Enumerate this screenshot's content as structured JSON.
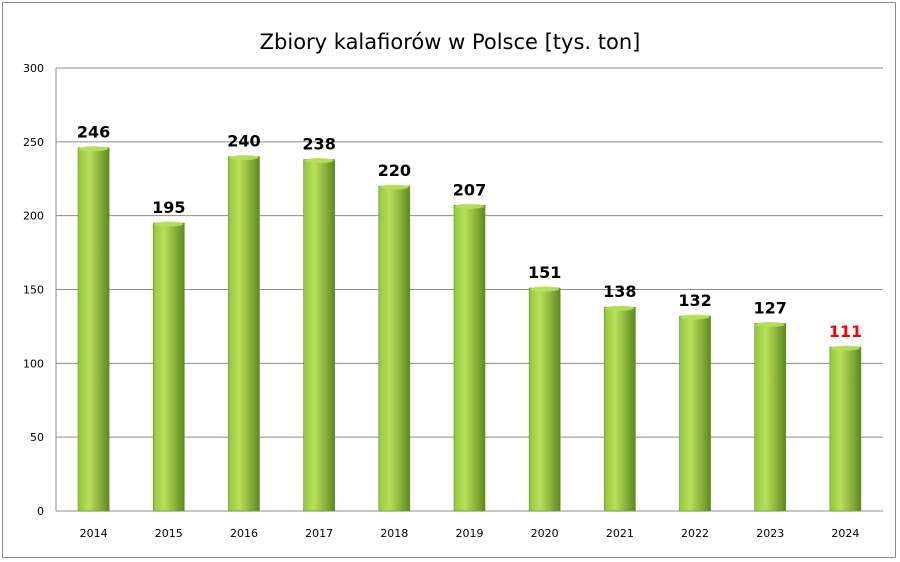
{
  "chart_data": {
    "type": "bar",
    "title": "Zbiory kalafiorów w Polsce [tys. ton]",
    "xlabel": "",
    "ylabel": "",
    "categories": [
      "2014",
      "2015",
      "2016",
      "2017",
      "2018",
      "2019",
      "2020",
      "2021",
      "2022",
      "2023",
      "2024"
    ],
    "values": [
      246,
      195,
      240,
      238,
      220,
      207,
      151,
      138,
      132,
      127,
      111
    ],
    "ylim": [
      0,
      300
    ],
    "yticks": [
      0,
      50,
      100,
      150,
      200,
      250,
      300
    ],
    "grid": true,
    "legend": "none",
    "colors": {
      "bar_light": "#b8e05a",
      "bar_mid": "#92c83e",
      "bar_dark": "#5e8a1e",
      "grid": "#8c8c8c",
      "label": "#000000",
      "highlight_label": "#ff0000"
    },
    "highlight_index": 10
  }
}
